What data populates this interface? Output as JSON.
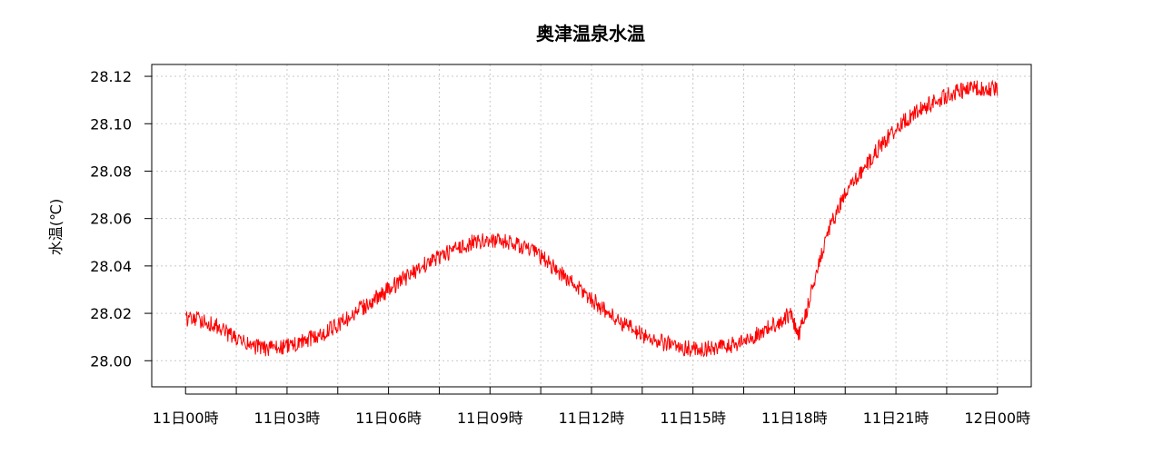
{
  "chart_data": {
    "type": "line",
    "title": "奥津温泉水温",
    "xlabel": "",
    "ylabel": "水温(℃)",
    "ylim": [
      27.989,
      28.125
    ],
    "y_ticks": [
      "28.00",
      "28.02",
      "28.04",
      "28.06",
      "28.08",
      "28.10",
      "28.12"
    ],
    "x_range_hours": [
      -1,
      25
    ],
    "x_ticks": [
      {
        "hour": 0,
        "label": "11日00時"
      },
      {
        "hour": 3,
        "label": "11日03時"
      },
      {
        "hour": 6,
        "label": "11日06時"
      },
      {
        "hour": 9,
        "label": "11日09時"
      },
      {
        "hour": 12,
        "label": "11日12時"
      },
      {
        "hour": 15,
        "label": "11日15時"
      },
      {
        "hour": 18,
        "label": "11日18時"
      },
      {
        "hour": 21,
        "label": "11日21時"
      },
      {
        "hour": 24,
        "label": "12日00時"
      }
    ],
    "grid": true,
    "series": [
      {
        "color": "#ff0000",
        "noise": 0.0035,
        "x": [
          0,
          0.5,
          1,
          1.5,
          2,
          2.5,
          3,
          3.5,
          4,
          4.5,
          5,
          5.5,
          6,
          6.5,
          7,
          7.5,
          8,
          8.5,
          9,
          9.5,
          10,
          10.5,
          11,
          11.5,
          12,
          12.5,
          13,
          13.5,
          14,
          14.5,
          15,
          15.5,
          16,
          16.5,
          17,
          17.5,
          17.9,
          18.1,
          18.3,
          18.7,
          19,
          19.5,
          20,
          20.5,
          21,
          21.5,
          22,
          22.5,
          23,
          23.5,
          24
        ],
        "y": [
          28.018,
          28.017,
          28.014,
          28.009,
          28.006,
          28.005,
          28.006,
          28.008,
          28.011,
          28.015,
          28.02,
          28.025,
          28.03,
          28.035,
          28.04,
          28.044,
          28.047,
          28.05,
          28.051,
          28.05,
          28.048,
          28.044,
          28.038,
          28.032,
          28.026,
          28.02,
          28.015,
          28.011,
          28.008,
          28.006,
          28.005,
          28.005,
          28.006,
          28.008,
          28.012,
          28.016,
          28.02,
          28.01,
          28.018,
          28.04,
          28.055,
          28.07,
          28.08,
          28.09,
          28.098,
          28.104,
          28.108,
          28.112,
          28.114,
          28.115,
          28.115
        ]
      }
    ]
  }
}
